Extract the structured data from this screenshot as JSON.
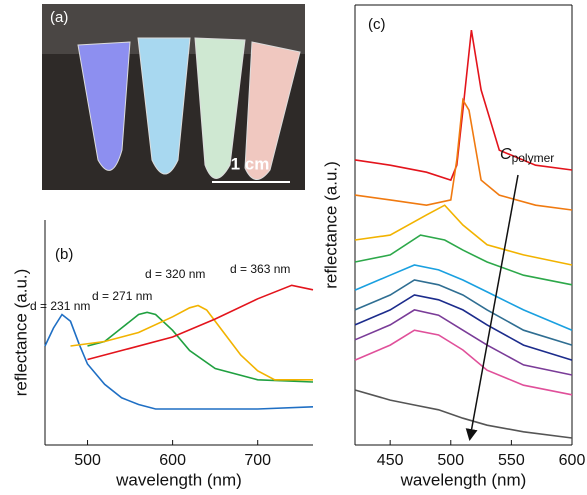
{
  "photo": {
    "label": "(a)",
    "scale_bar": "1 cm"
  },
  "chart_data": [
    {
      "type": "line",
      "panel": "(b)",
      "xlabel": "wavelength (nm)",
      "ylabel": "reflectance (a.u.)",
      "xlim": [
        450,
        765
      ],
      "xticks": [
        500,
        600,
        700
      ],
      "ylim": [
        0,
        1
      ],
      "series": [
        {
          "name": "d = 231 nm",
          "color": "#1f6fc4",
          "x": [
            450,
            460,
            470,
            480,
            490,
            500,
            520,
            540,
            560,
            580,
            600,
            650,
            700,
            765
          ],
          "values": [
            0.44,
            0.52,
            0.58,
            0.55,
            0.45,
            0.36,
            0.27,
            0.21,
            0.18,
            0.16,
            0.16,
            0.16,
            0.16,
            0.17
          ]
        },
        {
          "name": "d = 271 nm",
          "color": "#20a040",
          "x": [
            500,
            520,
            540,
            560,
            570,
            580,
            600,
            620,
            650,
            700,
            765
          ],
          "values": [
            0.44,
            0.46,
            0.52,
            0.58,
            0.59,
            0.58,
            0.51,
            0.42,
            0.34,
            0.29,
            0.28
          ]
        },
        {
          "name": "d = 320 nm",
          "color": "#f2b300",
          "x": [
            480,
            520,
            560,
            600,
            620,
            630,
            640,
            660,
            680,
            700,
            720,
            765
          ],
          "values": [
            0.44,
            0.46,
            0.5,
            0.57,
            0.61,
            0.62,
            0.6,
            0.5,
            0.4,
            0.33,
            0.29,
            0.29
          ]
        },
        {
          "name": "d = 363 nm",
          "color": "#e3141c",
          "x": [
            500,
            550,
            600,
            650,
            700,
            740,
            765
          ],
          "values": [
            0.38,
            0.43,
            0.48,
            0.56,
            0.65,
            0.71,
            0.69
          ]
        }
      ]
    },
    {
      "type": "line",
      "panel": "(c)",
      "xlabel": "wavelength (nm)",
      "ylabel": "reflectance (a.u.)",
      "annotation": {
        "symbol": "C",
        "subscript": "polymer"
      },
      "xlim": [
        421,
        600
      ],
      "xticks": [
        450,
        500,
        550,
        600
      ],
      "ylim": [
        0,
        1
      ],
      "series": [
        {
          "color": "#e3141c",
          "x": [
            421,
            450,
            480,
            500,
            505,
            510,
            517,
            525,
            540,
            570,
            600
          ],
          "values": [
            0.648,
            0.636,
            0.62,
            0.602,
            0.636,
            0.761,
            0.943,
            0.807,
            0.67,
            0.636,
            0.625
          ]
        },
        {
          "color": "#f07a10",
          "x": [
            421,
            450,
            480,
            500,
            505,
            510,
            515,
            525,
            540,
            570,
            600
          ],
          "values": [
            0.568,
            0.557,
            0.545,
            0.557,
            0.648,
            0.784,
            0.761,
            0.602,
            0.568,
            0.545,
            0.534
          ]
        },
        {
          "color": "#f2b300",
          "x": [
            421,
            450,
            480,
            495,
            510,
            530,
            560,
            600
          ],
          "values": [
            0.466,
            0.477,
            0.523,
            0.545,
            0.5,
            0.455,
            0.432,
            0.409
          ]
        },
        {
          "color": "#2da84a",
          "x": [
            421,
            450,
            475,
            495,
            510,
            530,
            560,
            600
          ],
          "values": [
            0.416,
            0.432,
            0.477,
            0.466,
            0.443,
            0.416,
            0.386,
            0.364
          ]
        },
        {
          "color": "#1aa0e0",
          "x": [
            421,
            450,
            470,
            490,
            510,
            530,
            560,
            600
          ],
          "values": [
            0.352,
            0.386,
            0.409,
            0.398,
            0.375,
            0.348,
            0.307,
            0.261
          ]
        },
        {
          "color": "#2f6e92",
          "x": [
            421,
            450,
            470,
            490,
            510,
            530,
            560,
            600
          ],
          "values": [
            0.307,
            0.341,
            0.375,
            0.364,
            0.341,
            0.307,
            0.261,
            0.227
          ]
        },
        {
          "color": "#1c2c8c",
          "x": [
            421,
            450,
            470,
            490,
            510,
            530,
            560,
            600
          ],
          "values": [
            0.273,
            0.307,
            0.341,
            0.33,
            0.307,
            0.273,
            0.227,
            0.193
          ]
        },
        {
          "color": "#7a3c98",
          "x": [
            421,
            450,
            470,
            490,
            510,
            530,
            560,
            600
          ],
          "values": [
            0.239,
            0.273,
            0.307,
            0.295,
            0.261,
            0.227,
            0.182,
            0.159
          ]
        },
        {
          "color": "#e0509a",
          "x": [
            421,
            450,
            470,
            490,
            510,
            530,
            560,
            600
          ],
          "values": [
            0.193,
            0.227,
            0.261,
            0.25,
            0.216,
            0.17,
            0.136,
            0.114
          ]
        },
        {
          "color": "#555555",
          "x": [
            421,
            450,
            470,
            490,
            510,
            530,
            560,
            600
          ],
          "values": [
            0.125,
            0.102,
            0.091,
            0.08,
            0.061,
            0.045,
            0.03,
            0.016
          ]
        }
      ]
    }
  ]
}
